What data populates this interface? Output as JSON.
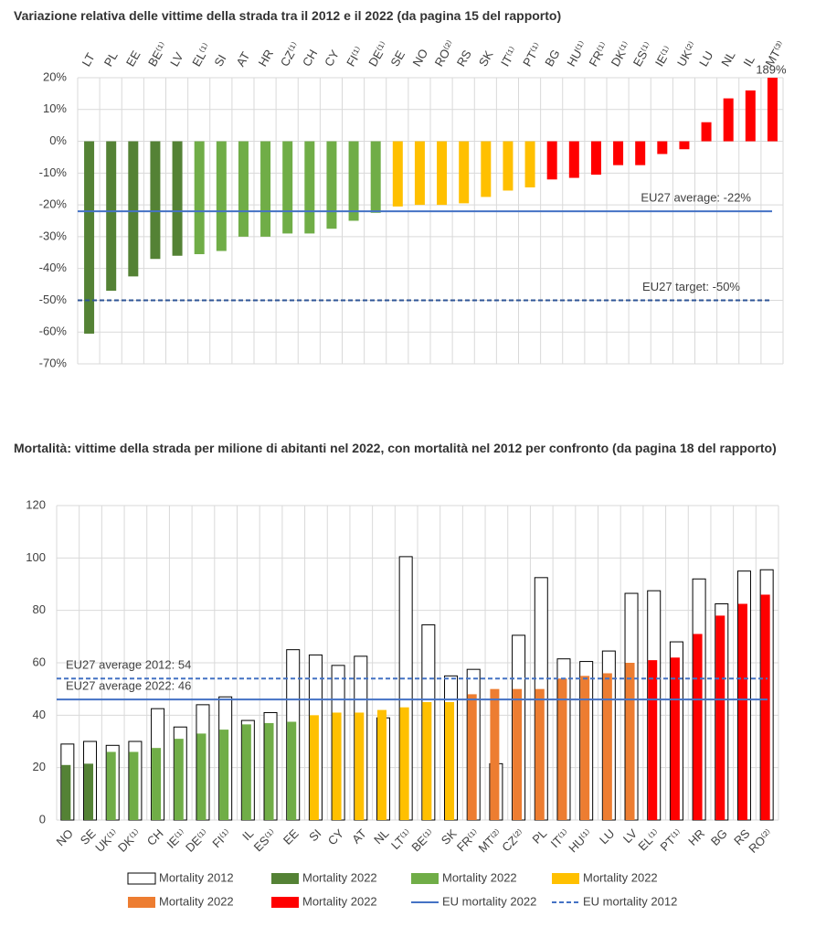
{
  "chart_data": [
    {
      "type": "bar",
      "title": "Variazione relativa delle vittime della strada tra il 2012 e il 2022 (da pagina 15 del rapporto)",
      "categories": [
        "LT",
        "PL",
        "EE",
        "BE⁽¹⁾",
        "LV",
        "EL⁽¹⁾",
        "SI",
        "AT",
        "HR",
        "CZ⁽¹⁾",
        "CH",
        "CY",
        "FI⁽¹⁾",
        "DE⁽¹⁾",
        "SE",
        "NO",
        "RO⁽²⁾",
        "RS",
        "SK",
        "IT⁽¹⁾",
        "PT⁽¹⁾",
        "BG",
        "HU⁽¹⁾",
        "FR⁽¹⁾",
        "DK⁽¹⁾",
        "ES⁽¹⁾",
        "IE⁽¹⁾",
        "UK⁽²⁾",
        "LU",
        "NL",
        "IL",
        "MT⁽³⁾"
      ],
      "series": [
        {
          "values": [
            -60.5,
            -47,
            -42.5,
            -37,
            -36,
            -35.5,
            -34.5,
            -30,
            -30,
            -29,
            -29,
            -27.5,
            -25,
            -22.5,
            -20.5,
            -20,
            -20,
            -19.5,
            -17.5,
            -15.5,
            -14.5,
            -12,
            -11.5,
            -10.5,
            -7.5,
            -7.5,
            -4,
            -2.5,
            6,
            13.5,
            16,
            189
          ],
          "value_labels": [
            null,
            null,
            null,
            null,
            null,
            null,
            null,
            null,
            null,
            null,
            null,
            null,
            null,
            null,
            null,
            null,
            null,
            null,
            null,
            null,
            null,
            null,
            null,
            null,
            null,
            null,
            null,
            null,
            null,
            null,
            null,
            "189%"
          ],
          "colors": [
            "#548235",
            "#548235",
            "#548235",
            "#548235",
            "#548235",
            "#70ad47",
            "#70ad47",
            "#70ad47",
            "#70ad47",
            "#70ad47",
            "#70ad47",
            "#70ad47",
            "#70ad47",
            "#70ad47",
            "#ffc000",
            "#ffc000",
            "#ffc000",
            "#ffc000",
            "#ffc000",
            "#ffc000",
            "#ffc000",
            "#ff0000",
            "#ff0000",
            "#ff0000",
            "#ff0000",
            "#ff0000",
            "#ff0000",
            "#ff0000",
            "#ff0000",
            "#ff0000",
            "#ff0000",
            "#ff0000"
          ]
        }
      ],
      "ylim": [
        -70,
        20
      ],
      "yticks": [
        {
          "value": -70,
          "label": "-70%"
        },
        {
          "value": -60,
          "label": "-60%"
        },
        {
          "value": -50,
          "label": "-50%"
        },
        {
          "value": -40,
          "label": "-40%"
        },
        {
          "value": -30,
          "label": "-30%"
        },
        {
          "value": -20,
          "label": "-20%"
        },
        {
          "value": -10,
          "label": "-10%"
        },
        {
          "value": 0,
          "label": "0%"
        },
        {
          "value": 10,
          "label": "10%"
        },
        {
          "value": 20,
          "label": "20%"
        }
      ],
      "grid": true,
      "reference_lines": [
        {
          "value": -22,
          "label": "EU27 average: -22%",
          "style": "solid",
          "color": "#4472c4"
        },
        {
          "value": -50,
          "label": "EU27 target: -50%",
          "style": "dashed",
          "color": "#2f5597"
        }
      ]
    },
    {
      "type": "bar",
      "title": "Mortalità: vittime della strada per milione di abitanti nel 2022, con mortalità nel 2012 per confronto (da pagina 18 del rapporto)",
      "categories": [
        "NO",
        "SE",
        "UK⁽¹⁾",
        "DK⁽¹⁾",
        "CH",
        "IE⁽¹⁾",
        "DE⁽¹⁾",
        "FI⁽¹⁾",
        "IL",
        "ES⁽¹⁾",
        "EE",
        "SI",
        "CY",
        "AT",
        "NL",
        "LT⁽¹⁾",
        "BE⁽¹⁾",
        "SK",
        "FR⁽¹⁾",
        "MT⁽²⁾",
        "CZ⁽²⁾",
        "PL",
        "IT⁽¹⁾",
        "HU⁽¹⁾",
        "LU",
        "LV",
        "EL⁽¹⁾",
        "PT⁽¹⁾",
        "HR",
        "BG",
        "RS",
        "RO⁽²⁾"
      ],
      "series": [
        {
          "name": "Mortality 2012",
          "color": "#ffffff",
          "values": [
            29,
            30,
            28.5,
            30,
            42.5,
            35.5,
            44,
            47,
            38,
            41,
            65,
            63,
            59,
            62.5,
            39,
            100.5,
            74.5,
            55,
            57.5,
            21.5,
            70.5,
            92.5,
            61.5,
            60.5,
            64.5,
            86.5,
            87.5,
            68,
            92,
            82.5,
            95,
            95.5
          ]
        },
        {
          "name": "Mortality 2022",
          "values": [
            21,
            21.5,
            26,
            26,
            27.5,
            31,
            33,
            34.5,
            36.5,
            37,
            37.5,
            40,
            41,
            41,
            42,
            43,
            45,
            45,
            48,
            50,
            50,
            50,
            54,
            55,
            56,
            60,
            61,
            62,
            71,
            78,
            82.5,
            86
          ],
          "colors": [
            "#548235",
            "#548235",
            "#70ad47",
            "#70ad47",
            "#70ad47",
            "#70ad47",
            "#70ad47",
            "#70ad47",
            "#70ad47",
            "#70ad47",
            "#70ad47",
            "#ffc000",
            "#ffc000",
            "#ffc000",
            "#ffc000",
            "#ffc000",
            "#ffc000",
            "#ffc000",
            "#ed7d31",
            "#ed7d31",
            "#ed7d31",
            "#ed7d31",
            "#ed7d31",
            "#ed7d31",
            "#ed7d31",
            "#ed7d31",
            "#ff0000",
            "#ff0000",
            "#ff0000",
            "#ff0000",
            "#ff0000",
            "#ff0000"
          ],
          "legend_colors": [
            "#548235",
            "#70ad47",
            "#ffc000",
            "#ed7d31",
            "#ff0000"
          ]
        }
      ],
      "ylim": [
        0,
        120
      ],
      "yticks": [
        0,
        20,
        40,
        60,
        80,
        100,
        120
      ],
      "grid": true,
      "reference_lines": [
        {
          "value": 54,
          "label": "EU27 average 2012: 54",
          "legend": "EU mortality 2012",
          "style": "dashed",
          "color": "#4472c4"
        },
        {
          "value": 46,
          "label": "EU27 average 2022: 46",
          "legend": "EU mortality 2022",
          "style": "solid",
          "color": "#4472c4"
        }
      ]
    }
  ]
}
